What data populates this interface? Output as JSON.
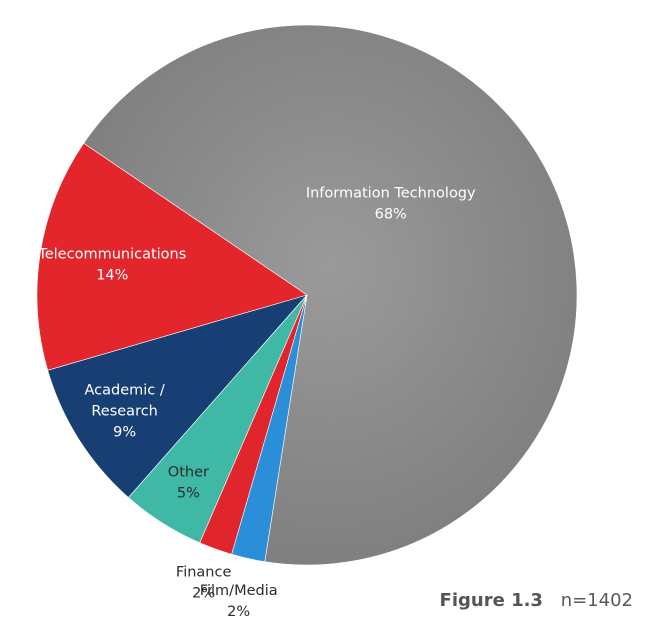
{
  "chart_data": {
    "type": "pie",
    "categories": [
      "Information Technology",
      "Telecommunications",
      "Academic / Research",
      "Other",
      "Finance",
      "Film/Media"
    ],
    "label_lines": [
      [
        "Information Technology"
      ],
      [
        "Telecommunications"
      ],
      [
        "Academic /",
        "Research"
      ],
      [
        "Other"
      ],
      [
        "Finance"
      ],
      [
        "Film/Media"
      ]
    ],
    "values": [
      68,
      14,
      9,
      5,
      2,
      2
    ],
    "value_labels": [
      "68%",
      "14%",
      "9%",
      "5%",
      "2%",
      "2%"
    ],
    "colors": [
      "#8e8e8e",
      "#e2262b",
      "#173f73",
      "#3fb8a6",
      "#e0262c",
      "#2a8fd8"
    ],
    "legend": "none"
  },
  "caption": {
    "figure": "Figure 1.3",
    "note": "n=1402"
  }
}
